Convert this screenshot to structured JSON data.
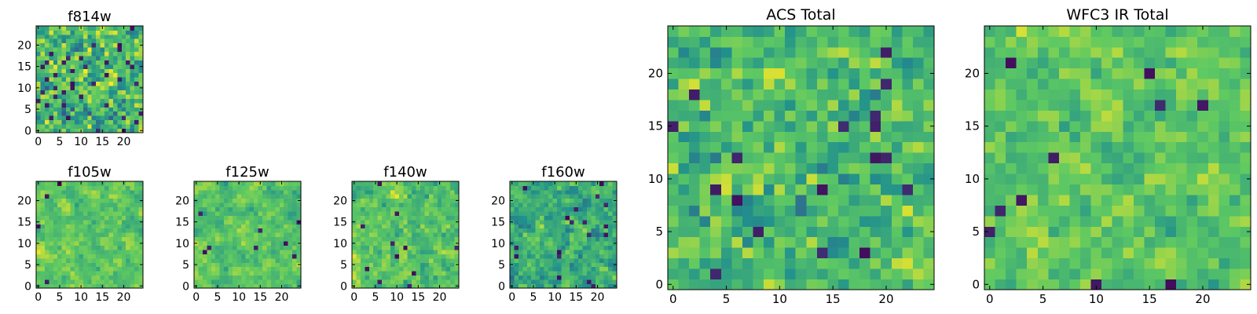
{
  "chart_data": [
    {
      "type": "heatmap",
      "title": "f814w",
      "size": 25,
      "xticks": [
        "0",
        "5",
        "10",
        "15",
        "20"
      ],
      "yticks": [
        "0",
        "5",
        "10",
        "15",
        "20"
      ],
      "xlim": [
        -0.5,
        24.5
      ],
      "ylim": [
        -0.5,
        24.5
      ],
      "seed": 11,
      "mean": 0.68,
      "sd": 0.18,
      "smooth": 0.3,
      "outliers": 0.06
    },
    {
      "type": "heatmap",
      "title": "f105w",
      "size": 25,
      "xticks": [
        "0",
        "5",
        "10",
        "15",
        "20"
      ],
      "yticks": [
        "0",
        "5",
        "10",
        "15",
        "20"
      ],
      "xlim": [
        -0.5,
        24.5
      ],
      "ylim": [
        -0.5,
        24.5
      ],
      "seed": 23,
      "mean": 0.74,
      "sd": 0.11,
      "smooth": 0.55,
      "outliers": 0.008
    },
    {
      "type": "heatmap",
      "title": "f125w",
      "size": 25,
      "xticks": [
        "0",
        "5",
        "10",
        "15",
        "20"
      ],
      "yticks": [
        "0",
        "5",
        "10",
        "15",
        "20"
      ],
      "xlim": [
        -0.5,
        24.5
      ],
      "ylim": [
        -0.5,
        24.5
      ],
      "seed": 37,
      "mean": 0.72,
      "sd": 0.11,
      "smooth": 0.55,
      "outliers": 0.012
    },
    {
      "type": "heatmap",
      "title": "f140w",
      "size": 25,
      "xticks": [
        "0",
        "5",
        "10",
        "15",
        "20"
      ],
      "yticks": [
        "0",
        "5",
        "10",
        "15",
        "20"
      ],
      "xlim": [
        -0.5,
        24.5
      ],
      "ylim": [
        -0.5,
        24.5
      ],
      "seed": 41,
      "mean": 0.72,
      "sd": 0.13,
      "smooth": 0.5,
      "outliers": 0.016
    },
    {
      "type": "heatmap",
      "title": "f160w",
      "size": 25,
      "xticks": [
        "0",
        "5",
        "10",
        "15",
        "20"
      ],
      "yticks": [
        "0",
        "5",
        "10",
        "15",
        "20"
      ],
      "xlim": [
        -0.5,
        24.5
      ],
      "ylim": [
        -0.5,
        24.5
      ],
      "seed": 53,
      "mean": 0.62,
      "sd": 0.14,
      "smooth": 0.5,
      "outliers": 0.02
    },
    {
      "type": "heatmap",
      "title": "ACS Total",
      "size": 25,
      "xticks": [
        "0",
        "5",
        "10",
        "15",
        "20"
      ],
      "yticks": [
        "0",
        "5",
        "10",
        "15",
        "20"
      ],
      "xlim": [
        -0.5,
        24.5
      ],
      "ylim": [
        -0.5,
        24.5
      ],
      "seed": 67,
      "mean": 0.68,
      "sd": 0.15,
      "smooth": 0.3,
      "outliers": 0.028
    },
    {
      "type": "heatmap",
      "title": "WFC3 IR Total",
      "size": 25,
      "xticks": [
        "0",
        "5",
        "10",
        "15",
        "20"
      ],
      "yticks": [
        "0",
        "5",
        "10",
        "15",
        "20"
      ],
      "xlim": [
        -0.5,
        24.5
      ],
      "ylim": [
        -0.5,
        24.5
      ],
      "seed": 79,
      "mean": 0.73,
      "sd": 0.12,
      "smooth": 0.45,
      "outliers": 0.018
    }
  ],
  "colormap": [
    "#440154",
    "#3b528b",
    "#21918c",
    "#5ec962",
    "#fde725"
  ]
}
